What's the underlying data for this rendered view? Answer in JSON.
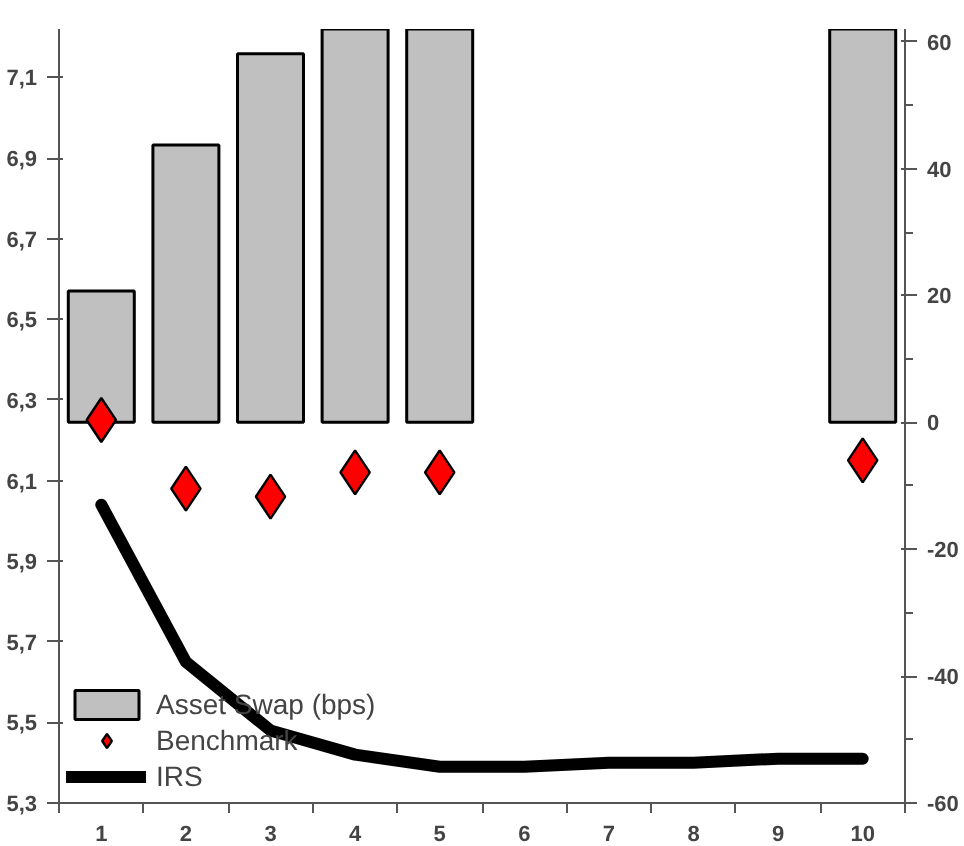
{
  "chart_data": {
    "type": "bar",
    "categories": [
      "1",
      "2",
      "3",
      "4",
      "5",
      "6",
      "7",
      "8",
      "9",
      "10"
    ],
    "ylim": [
      5.3,
      7.22
    ],
    "yticks": [
      {
        "value": 5.3,
        "label": "5,3"
      },
      {
        "value": 5.5,
        "label": "5,5"
      },
      {
        "value": 5.7,
        "label": "5,7"
      },
      {
        "value": 5.9,
        "label": "5,9"
      },
      {
        "value": 6.1,
        "label": "6,1"
      },
      {
        "value": 6.3,
        "label": "6,3"
      },
      {
        "value": 6.5,
        "label": "6,5"
      },
      {
        "value": 6.7,
        "label": "6,7"
      },
      {
        "value": 6.9,
        "label": "6,9"
      },
      {
        "value": 7.1,
        "label": "7,1"
      }
    ],
    "y2lim": [
      -60,
      62
    ],
    "y2ticks": [
      -60,
      -40,
      -20,
      0,
      20,
      40,
      60
    ],
    "series": [
      {
        "name": "Asset Swap (bps)",
        "axis": "y2",
        "color": "#c0c0c0",
        "values": [
          20.7,
          43.7,
          58.1,
          62,
          62,
          null,
          null,
          null,
          null,
          62
        ]
      },
      {
        "name": "Benchmark",
        "type": "scatter",
        "marker": "diamond",
        "color": "#ff0000",
        "values": [
          6.25,
          6.08,
          6.06,
          6.12,
          6.12,
          null,
          null,
          null,
          null,
          6.15
        ]
      },
      {
        "name": "IRS",
        "type": "line",
        "color": "#000000",
        "values": [
          6.04,
          5.65,
          5.48,
          5.42,
          5.39,
          5.39,
          5.4,
          5.4,
          5.41,
          5.41
        ]
      }
    ],
    "legend": "bottom left",
    "grid": false
  }
}
